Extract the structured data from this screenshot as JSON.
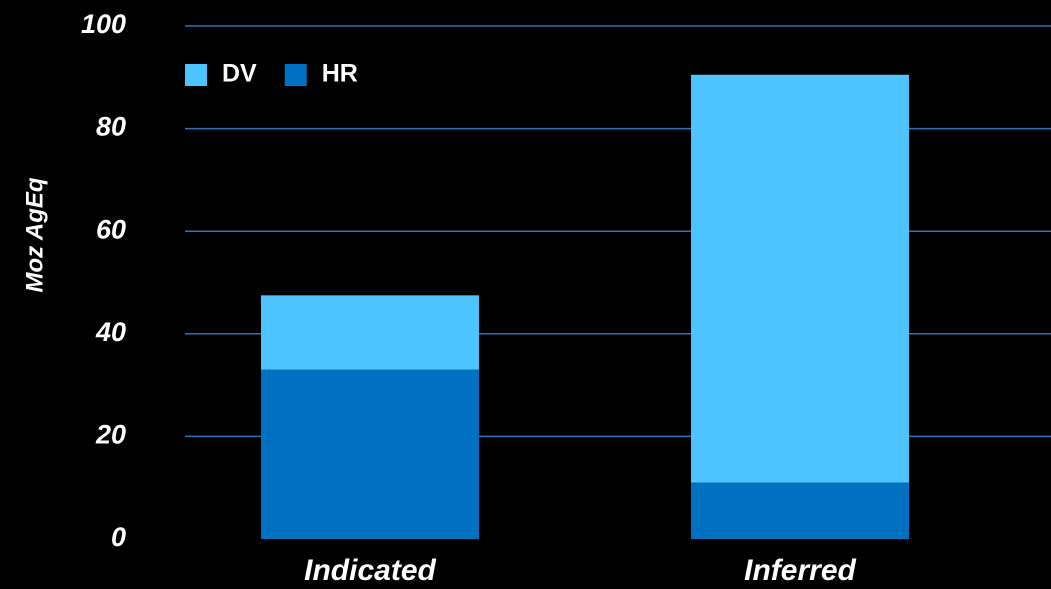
{
  "chart_data": {
    "type": "stacked_bar",
    "y_label": "Moz AgEq",
    "categories": [
      "Indicated",
      "Inferred"
    ],
    "series": [
      {
        "name": "DV",
        "color": "#4dc3ff",
        "values": [
          14.5,
          79.5
        ]
      },
      {
        "name": "HR",
        "color": "#0070c0",
        "values": [
          33,
          11
        ]
      }
    ],
    "ylim": [
      0,
      100
    ],
    "yticks": [
      0,
      20,
      40,
      60,
      80,
      100
    ],
    "grid": true,
    "legend": "top-left"
  }
}
